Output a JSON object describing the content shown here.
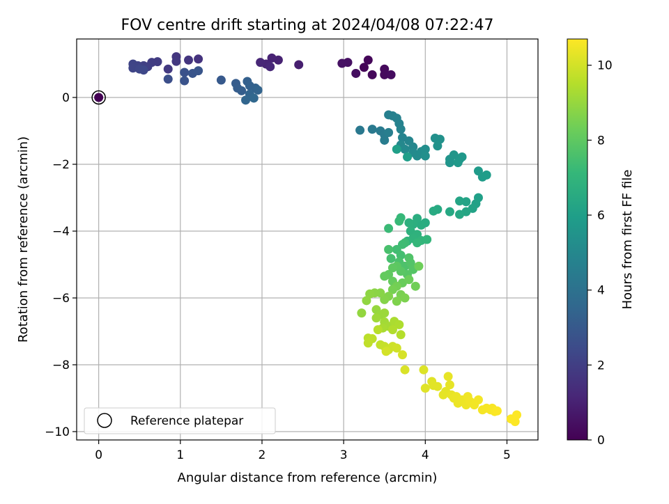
{
  "chart_data": {
    "type": "scatter",
    "title": "FOV centre drift starting at 2024/04/08 07:22:47",
    "xlabel": "Angular distance from reference (arcmin)",
    "ylabel": "Rotation from reference (arcmin)",
    "xlim": [
      -0.27,
      5.38
    ],
    "ylim": [
      -10.25,
      1.75
    ],
    "x_ticks": [
      0,
      1,
      2,
      3,
      4,
      5
    ],
    "y_ticks": [
      0,
      -2,
      -4,
      -6,
      -8,
      -10
    ],
    "grid": true,
    "legend": {
      "position": "lower-left",
      "entries": [
        "Reference platepar"
      ]
    },
    "colorbar": {
      "label": "Hours from first FF file",
      "colormap": "viridis",
      "range": [
        0,
        10.7
      ],
      "ticks": [
        0,
        2,
        4,
        6,
        8,
        10
      ]
    },
    "reference_point": {
      "x": 0,
      "y": 0,
      "label": "Reference platepar"
    },
    "points": [
      {
        "x": 3.25,
        "y": 0.9,
        "t": 0.1
      },
      {
        "x": 3.3,
        "y": 1.12,
        "t": 0.15
      },
      {
        "x": 3.35,
        "y": 0.68,
        "t": 0.2
      },
      {
        "x": 3.5,
        "y": 0.85,
        "t": 0.25
      },
      {
        "x": 3.5,
        "y": 0.68,
        "t": 0.3
      },
      {
        "x": 3.58,
        "y": 0.68,
        "t": 0.35
      },
      {
        "x": 3.15,
        "y": 0.72,
        "t": 0.4
      },
      {
        "x": 3.05,
        "y": 1.05,
        "t": 0.45
      },
      {
        "x": 2.98,
        "y": 1.02,
        "t": 0.5
      },
      {
        "x": 2.45,
        "y": 0.98,
        "t": 0.9
      },
      {
        "x": 2.2,
        "y": 1.12,
        "t": 1.0
      },
      {
        "x": 2.12,
        "y": 1.18,
        "t": 1.05
      },
      {
        "x": 2.05,
        "y": 1.0,
        "t": 1.1
      },
      {
        "x": 1.98,
        "y": 1.05,
        "t": 1.15
      },
      {
        "x": 2.1,
        "y": 0.92,
        "t": 1.2
      },
      {
        "x": 1.22,
        "y": 1.15,
        "t": 1.6
      },
      {
        "x": 1.1,
        "y": 1.12,
        "t": 1.65
      },
      {
        "x": 0.95,
        "y": 1.22,
        "t": 1.7
      },
      {
        "x": 0.95,
        "y": 1.08,
        "t": 1.75
      },
      {
        "x": 0.85,
        "y": 0.85,
        "t": 1.8
      },
      {
        "x": 0.72,
        "y": 1.07,
        "t": 1.9
      },
      {
        "x": 0.65,
        "y": 1.05,
        "t": 1.95
      },
      {
        "x": 0.6,
        "y": 0.92,
        "t": 2.0
      },
      {
        "x": 0.55,
        "y": 0.95,
        "t": 2.05
      },
      {
        "x": 0.52,
        "y": 0.9,
        "t": 2.1
      },
      {
        "x": 0.48,
        "y": 0.95,
        "t": 2.15
      },
      {
        "x": 0.42,
        "y": 1.0,
        "t": 2.2
      },
      {
        "x": 0.42,
        "y": 0.88,
        "t": 2.25
      },
      {
        "x": 0.5,
        "y": 0.85,
        "t": 2.3
      },
      {
        "x": 0.55,
        "y": 0.82,
        "t": 2.35
      },
      {
        "x": 0.85,
        "y": 0.55,
        "t": 2.6
      },
      {
        "x": 1.05,
        "y": 0.75,
        "t": 2.7
      },
      {
        "x": 1.05,
        "y": 0.5,
        "t": 2.75
      },
      {
        "x": 1.15,
        "y": 0.72,
        "t": 2.8
      },
      {
        "x": 1.22,
        "y": 0.8,
        "t": 2.85
      },
      {
        "x": 1.5,
        "y": 0.52,
        "t": 3.0
      },
      {
        "x": 1.68,
        "y": 0.42,
        "t": 3.1
      },
      {
        "x": 1.7,
        "y": 0.28,
        "t": 3.15
      },
      {
        "x": 1.75,
        "y": 0.2,
        "t": 3.2
      },
      {
        "x": 1.82,
        "y": 0.48,
        "t": 3.25
      },
      {
        "x": 1.85,
        "y": 0.35,
        "t": 3.3
      },
      {
        "x": 1.92,
        "y": 0.28,
        "t": 3.35
      },
      {
        "x": 1.95,
        "y": 0.22,
        "t": 3.4
      },
      {
        "x": 1.85,
        "y": 0.1,
        "t": 3.45
      },
      {
        "x": 1.8,
        "y": -0.08,
        "t": 3.5
      },
      {
        "x": 1.9,
        "y": -0.02,
        "t": 3.55
      },
      {
        "x": 3.2,
        "y": -0.98,
        "t": 4.3
      },
      {
        "x": 3.35,
        "y": -0.95,
        "t": 4.35
      },
      {
        "x": 3.45,
        "y": -1.0,
        "t": 4.4
      },
      {
        "x": 3.5,
        "y": -1.12,
        "t": 4.45
      },
      {
        "x": 3.5,
        "y": -1.28,
        "t": 4.5
      },
      {
        "x": 3.55,
        "y": -1.05,
        "t": 4.55
      },
      {
        "x": 3.55,
        "y": -0.52,
        "t": 4.6
      },
      {
        "x": 3.6,
        "y": -0.55,
        "t": 4.65
      },
      {
        "x": 3.65,
        "y": -0.62,
        "t": 4.7
      },
      {
        "x": 3.68,
        "y": -0.78,
        "t": 4.75
      },
      {
        "x": 3.7,
        "y": -0.95,
        "t": 4.8
      },
      {
        "x": 3.72,
        "y": -1.2,
        "t": 4.85
      },
      {
        "x": 3.8,
        "y": -1.3,
        "t": 4.9
      },
      {
        "x": 3.85,
        "y": -1.48,
        "t": 4.95
      },
      {
        "x": 3.7,
        "y": -1.42,
        "t": 5.0
      },
      {
        "x": 3.75,
        "y": -1.55,
        "t": 5.05
      },
      {
        "x": 3.85,
        "y": -1.65,
        "t": 5.1
      },
      {
        "x": 3.9,
        "y": -1.75,
        "t": 5.15
      },
      {
        "x": 3.95,
        "y": -1.62,
        "t": 5.2
      },
      {
        "x": 4.0,
        "y": -1.55,
        "t": 5.25
      },
      {
        "x": 4.0,
        "y": -1.75,
        "t": 5.3
      },
      {
        "x": 4.12,
        "y": -1.22,
        "t": 5.35
      },
      {
        "x": 4.18,
        "y": -1.25,
        "t": 5.4
      },
      {
        "x": 4.15,
        "y": -1.45,
        "t": 5.45
      },
      {
        "x": 4.3,
        "y": -1.85,
        "t": 5.5
      },
      {
        "x": 4.3,
        "y": -1.95,
        "t": 5.55
      },
      {
        "x": 4.35,
        "y": -1.72,
        "t": 5.6
      },
      {
        "x": 4.42,
        "y": -1.85,
        "t": 5.65
      },
      {
        "x": 4.45,
        "y": -1.78,
        "t": 5.7
      },
      {
        "x": 4.4,
        "y": -1.95,
        "t": 5.75
      },
      {
        "x": 4.65,
        "y": -2.2,
        "t": 5.8
      },
      {
        "x": 4.7,
        "y": -2.38,
        "t": 5.85
      },
      {
        "x": 4.75,
        "y": -2.32,
        "t": 5.9
      },
      {
        "x": 3.78,
        "y": -1.78,
        "t": 5.95
      },
      {
        "x": 3.65,
        "y": -1.55,
        "t": 6.0
      },
      {
        "x": 4.65,
        "y": -3.0,
        "t": 6.05
      },
      {
        "x": 4.62,
        "y": -3.18,
        "t": 6.1
      },
      {
        "x": 4.58,
        "y": -3.32,
        "t": 6.15
      },
      {
        "x": 4.5,
        "y": -3.12,
        "t": 6.2
      },
      {
        "x": 4.42,
        "y": -3.1,
        "t": 6.25
      },
      {
        "x": 4.5,
        "y": -3.42,
        "t": 6.3
      },
      {
        "x": 4.42,
        "y": -3.5,
        "t": 6.35
      },
      {
        "x": 4.3,
        "y": -3.42,
        "t": 6.4
      },
      {
        "x": 4.15,
        "y": -3.35,
        "t": 6.45
      },
      {
        "x": 4.1,
        "y": -3.4,
        "t": 6.5
      },
      {
        "x": 4.0,
        "y": -3.75,
        "t": 6.55
      },
      {
        "x": 3.95,
        "y": -3.82,
        "t": 6.6
      },
      {
        "x": 3.9,
        "y": -3.62,
        "t": 6.65
      },
      {
        "x": 3.85,
        "y": -3.8,
        "t": 6.7
      },
      {
        "x": 3.8,
        "y": -3.75,
        "t": 6.75
      },
      {
        "x": 3.82,
        "y": -4.0,
        "t": 6.8
      },
      {
        "x": 3.9,
        "y": -4.1,
        "t": 6.85
      },
      {
        "x": 3.85,
        "y": -4.22,
        "t": 6.9
      },
      {
        "x": 3.78,
        "y": -4.3,
        "t": 6.95
      },
      {
        "x": 3.95,
        "y": -4.28,
        "t": 7.0
      },
      {
        "x": 4.02,
        "y": -4.25,
        "t": 7.05
      },
      {
        "x": 3.9,
        "y": -4.35,
        "t": 7.1
      },
      {
        "x": 3.7,
        "y": -3.6,
        "t": 7.15
      },
      {
        "x": 3.68,
        "y": -3.7,
        "t": 7.2
      },
      {
        "x": 3.55,
        "y": -3.92,
        "t": 7.25
      },
      {
        "x": 3.75,
        "y": -4.35,
        "t": 7.3
      },
      {
        "x": 3.72,
        "y": -4.4,
        "t": 7.35
      },
      {
        "x": 3.65,
        "y": -4.55,
        "t": 7.4
      },
      {
        "x": 3.7,
        "y": -4.72,
        "t": 7.45
      },
      {
        "x": 3.58,
        "y": -4.82,
        "t": 7.5
      },
      {
        "x": 3.55,
        "y": -4.55,
        "t": 7.55
      },
      {
        "x": 3.68,
        "y": -4.92,
        "t": 7.6
      },
      {
        "x": 3.75,
        "y": -5.05,
        "t": 7.65
      },
      {
        "x": 3.8,
        "y": -4.8,
        "t": 7.7
      },
      {
        "x": 3.82,
        "y": -4.95,
        "t": 7.75
      },
      {
        "x": 3.85,
        "y": -5.15,
        "t": 7.8
      },
      {
        "x": 3.78,
        "y": -5.3,
        "t": 7.85
      },
      {
        "x": 3.7,
        "y": -5.2,
        "t": 7.9
      },
      {
        "x": 3.65,
        "y": -5.05,
        "t": 7.95
      },
      {
        "x": 3.6,
        "y": -5.1,
        "t": 8.0
      },
      {
        "x": 3.55,
        "y": -5.3,
        "t": 8.05
      },
      {
        "x": 3.5,
        "y": -5.35,
        "t": 8.1
      },
      {
        "x": 3.6,
        "y": -5.5,
        "t": 8.15
      },
      {
        "x": 3.72,
        "y": -5.55,
        "t": 8.2
      },
      {
        "x": 3.8,
        "y": -5.45,
        "t": 8.25
      },
      {
        "x": 3.92,
        "y": -5.05,
        "t": 8.3
      },
      {
        "x": 3.88,
        "y": -5.65,
        "t": 8.35
      },
      {
        "x": 3.65,
        "y": -5.65,
        "t": 8.4
      },
      {
        "x": 3.6,
        "y": -5.75,
        "t": 8.45
      },
      {
        "x": 3.7,
        "y": -5.9,
        "t": 8.5
      },
      {
        "x": 3.75,
        "y": -6.0,
        "t": 8.55
      },
      {
        "x": 3.65,
        "y": -6.1,
        "t": 8.6
      },
      {
        "x": 3.55,
        "y": -5.95,
        "t": 8.65
      },
      {
        "x": 3.5,
        "y": -6.05,
        "t": 8.7
      },
      {
        "x": 3.45,
        "y": -5.85,
        "t": 8.75
      },
      {
        "x": 3.38,
        "y": -5.85,
        "t": 8.8
      },
      {
        "x": 3.32,
        "y": -5.88,
        "t": 8.85
      },
      {
        "x": 3.28,
        "y": -6.08,
        "t": 8.9
      },
      {
        "x": 3.22,
        "y": -6.45,
        "t": 8.95
      },
      {
        "x": 3.4,
        "y": -6.35,
        "t": 9.0
      },
      {
        "x": 3.45,
        "y": -6.5,
        "t": 9.05
      },
      {
        "x": 3.5,
        "y": -6.45,
        "t": 9.1
      },
      {
        "x": 3.4,
        "y": -6.6,
        "t": 9.15
      },
      {
        "x": 3.5,
        "y": -6.72,
        "t": 9.2
      },
      {
        "x": 3.55,
        "y": -6.85,
        "t": 9.25
      },
      {
        "x": 3.48,
        "y": -6.9,
        "t": 9.3
      },
      {
        "x": 3.62,
        "y": -6.7,
        "t": 9.35
      },
      {
        "x": 3.68,
        "y": -6.8,
        "t": 9.4
      },
      {
        "x": 3.6,
        "y": -6.95,
        "t": 9.45
      },
      {
        "x": 3.7,
        "y": -7.1,
        "t": 9.5
      },
      {
        "x": 3.42,
        "y": -6.95,
        "t": 9.55
      },
      {
        "x": 3.3,
        "y": -7.2,
        "t": 9.6
      },
      {
        "x": 3.35,
        "y": -7.22,
        "t": 9.65
      },
      {
        "x": 3.3,
        "y": -7.35,
        "t": 9.7
      },
      {
        "x": 3.45,
        "y": -7.4,
        "t": 9.75
      },
      {
        "x": 3.5,
        "y": -7.45,
        "t": 9.8
      },
      {
        "x": 3.55,
        "y": -7.55,
        "t": 9.85
      },
      {
        "x": 3.6,
        "y": -7.45,
        "t": 9.9
      },
      {
        "x": 3.65,
        "y": -7.5,
        "t": 9.95
      },
      {
        "x": 3.52,
        "y": -7.6,
        "t": 10.0
      },
      {
        "x": 3.72,
        "y": -7.7,
        "t": 10.05
      },
      {
        "x": 3.75,
        "y": -8.15,
        "t": 10.1
      },
      {
        "x": 3.98,
        "y": -8.15,
        "t": 10.15
      },
      {
        "x": 4.0,
        "y": -8.7,
        "t": 10.2
      },
      {
        "x": 4.08,
        "y": -8.5,
        "t": 10.22
      },
      {
        "x": 4.1,
        "y": -8.62,
        "t": 10.24
      },
      {
        "x": 4.15,
        "y": -8.65,
        "t": 10.26
      },
      {
        "x": 4.25,
        "y": -8.8,
        "t": 10.28
      },
      {
        "x": 4.22,
        "y": -8.9,
        "t": 10.3
      },
      {
        "x": 4.3,
        "y": -8.6,
        "t": 10.32
      },
      {
        "x": 4.28,
        "y": -8.35,
        "t": 10.34
      },
      {
        "x": 4.32,
        "y": -8.9,
        "t": 10.36
      },
      {
        "x": 4.35,
        "y": -9.0,
        "t": 10.38
      },
      {
        "x": 4.38,
        "y": -8.95,
        "t": 10.4
      },
      {
        "x": 4.4,
        "y": -9.15,
        "t": 10.42
      },
      {
        "x": 4.45,
        "y": -9.05,
        "t": 10.44
      },
      {
        "x": 4.5,
        "y": -9.2,
        "t": 10.46
      },
      {
        "x": 4.52,
        "y": -8.95,
        "t": 10.48
      },
      {
        "x": 4.55,
        "y": -9.1,
        "t": 10.5
      },
      {
        "x": 4.6,
        "y": -9.2,
        "t": 10.52
      },
      {
        "x": 4.65,
        "y": -9.05,
        "t": 10.54
      },
      {
        "x": 4.7,
        "y": -9.35,
        "t": 10.56
      },
      {
        "x": 4.75,
        "y": -9.3,
        "t": 10.58
      },
      {
        "x": 4.8,
        "y": -9.35,
        "t": 10.6
      },
      {
        "x": 4.82,
        "y": -9.3,
        "t": 10.62
      },
      {
        "x": 4.85,
        "y": -9.4,
        "t": 10.64
      },
      {
        "x": 4.88,
        "y": -9.38,
        "t": 10.66
      },
      {
        "x": 5.05,
        "y": -9.62,
        "t": 10.68
      },
      {
        "x": 5.1,
        "y": -9.7,
        "t": 10.69
      },
      {
        "x": 5.12,
        "y": -9.5,
        "t": 10.7
      }
    ]
  }
}
